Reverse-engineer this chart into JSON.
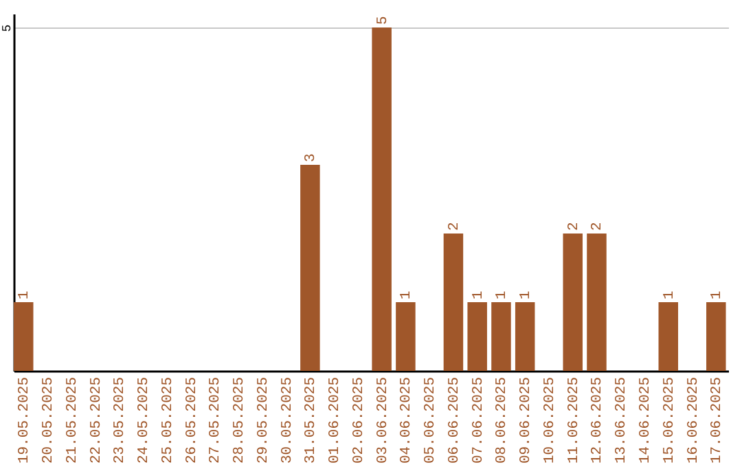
{
  "chart_data": {
    "type": "bar",
    "categories": [
      "19.05.2025",
      "20.05.2025",
      "21.05.2025",
      "22.05.2025",
      "23.05.2025",
      "24.05.2025",
      "25.05.2025",
      "26.05.2025",
      "27.05.2025",
      "28.05.2025",
      "29.05.2025",
      "30.05.2025",
      "31.05.2025",
      "01.06.2025",
      "02.06.2025",
      "03.06.2025",
      "04.06.2025",
      "05.06.2025",
      "06.06.2025",
      "07.06.2025",
      "08.06.2025",
      "09.06.2025",
      "10.06.2025",
      "11.06.2025",
      "12.06.2025",
      "13.06.2025",
      "14.06.2025",
      "15.06.2025",
      "16.06.2025",
      "17.06.2025"
    ],
    "values": [
      1,
      0,
      0,
      0,
      0,
      0,
      0,
      0,
      0,
      0,
      0,
      0,
      3,
      0,
      0,
      5,
      1,
      0,
      2,
      1,
      1,
      1,
      0,
      2,
      2,
      0,
      0,
      1,
      0,
      1
    ],
    "value_labels": [
      "1",
      null,
      null,
      null,
      null,
      null,
      null,
      null,
      null,
      null,
      null,
      null,
      "3",
      null,
      null,
      "5",
      "1",
      null,
      "2",
      "1",
      "1",
      "1",
      null,
      "2",
      "2",
      null,
      null,
      "1",
      null,
      "1"
    ],
    "color": "#a0572a",
    "ylim": [
      0,
      5.2
    ],
    "yticks": [
      5
    ],
    "grid": "y"
  }
}
